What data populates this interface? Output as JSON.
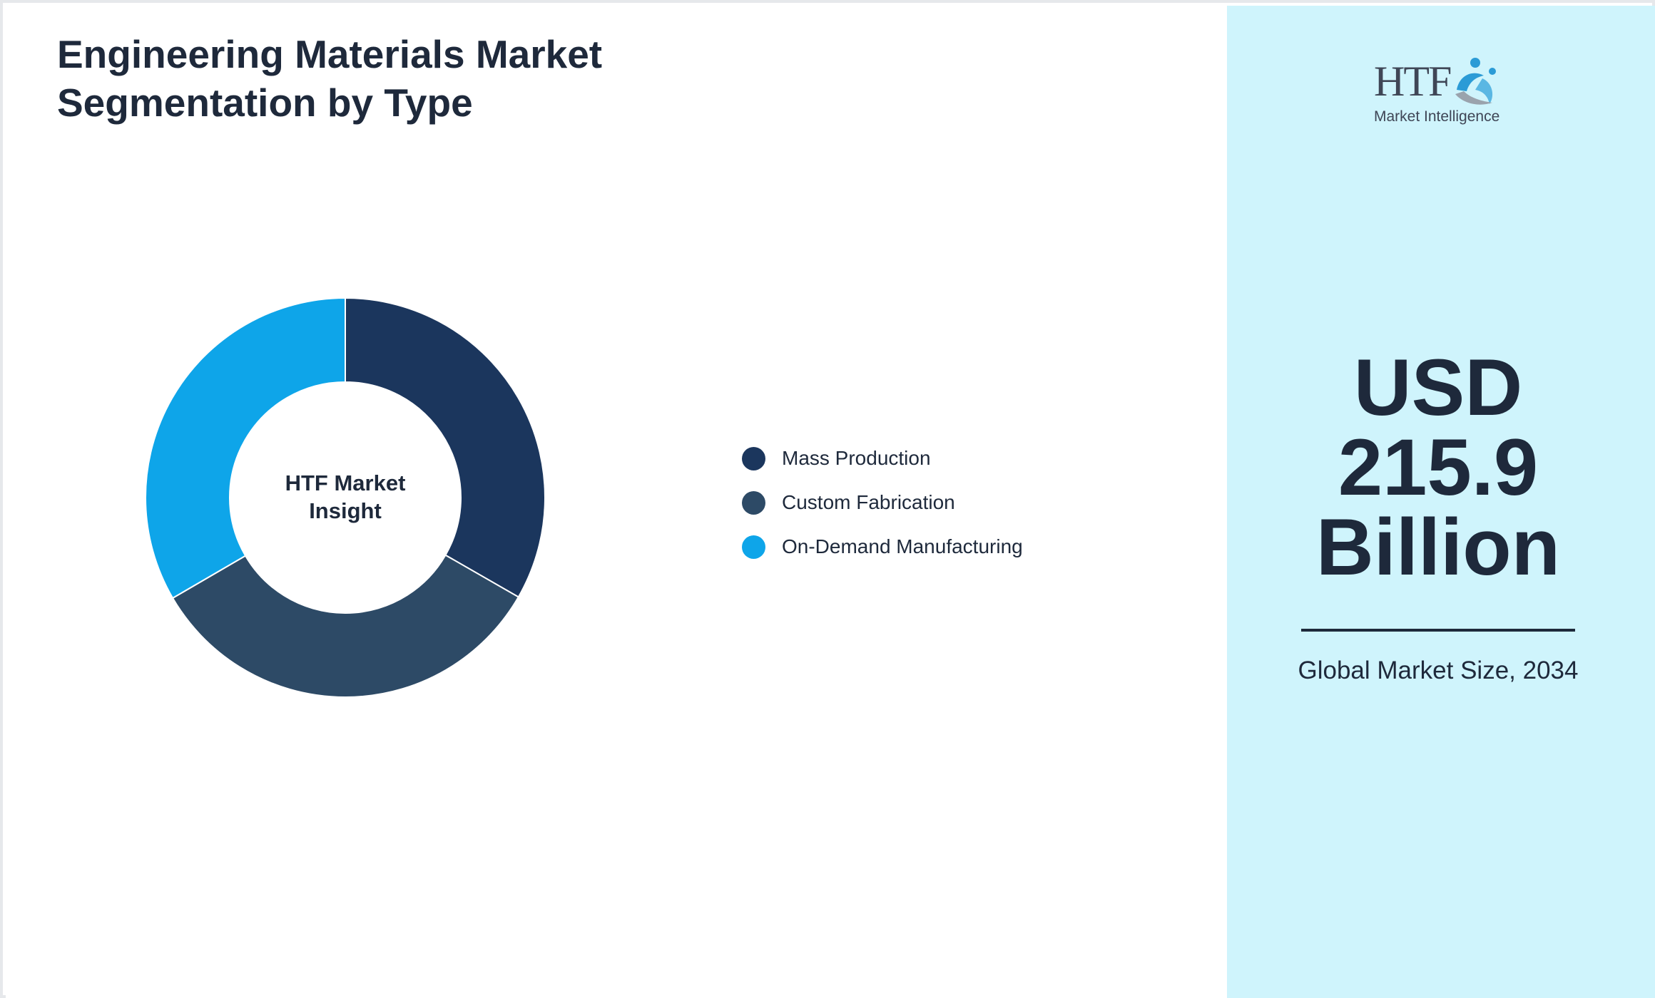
{
  "title": "Engineering Materials Market Segmentation by Type",
  "chart_data": {
    "type": "pie",
    "variant": "donut",
    "title": "Engineering Materials Market Segmentation by Type",
    "center_label": "HTF Market Insight",
    "categories": [
      "Mass Production",
      "Custom Fabrication",
      "On-Demand Manufacturing"
    ],
    "values": [
      33.3,
      33.3,
      33.4
    ],
    "colors": [
      "#1b365d",
      "#2d4a66",
      "#0ea5e9"
    ],
    "legend_placement": "right"
  },
  "logo": {
    "text": "HTF",
    "subtitle": "Market Intelligence"
  },
  "kpi": {
    "value_line1": "USD",
    "value_line2": "215.9",
    "value_line3": "Billion",
    "caption": "Global Market Size, 2034"
  }
}
